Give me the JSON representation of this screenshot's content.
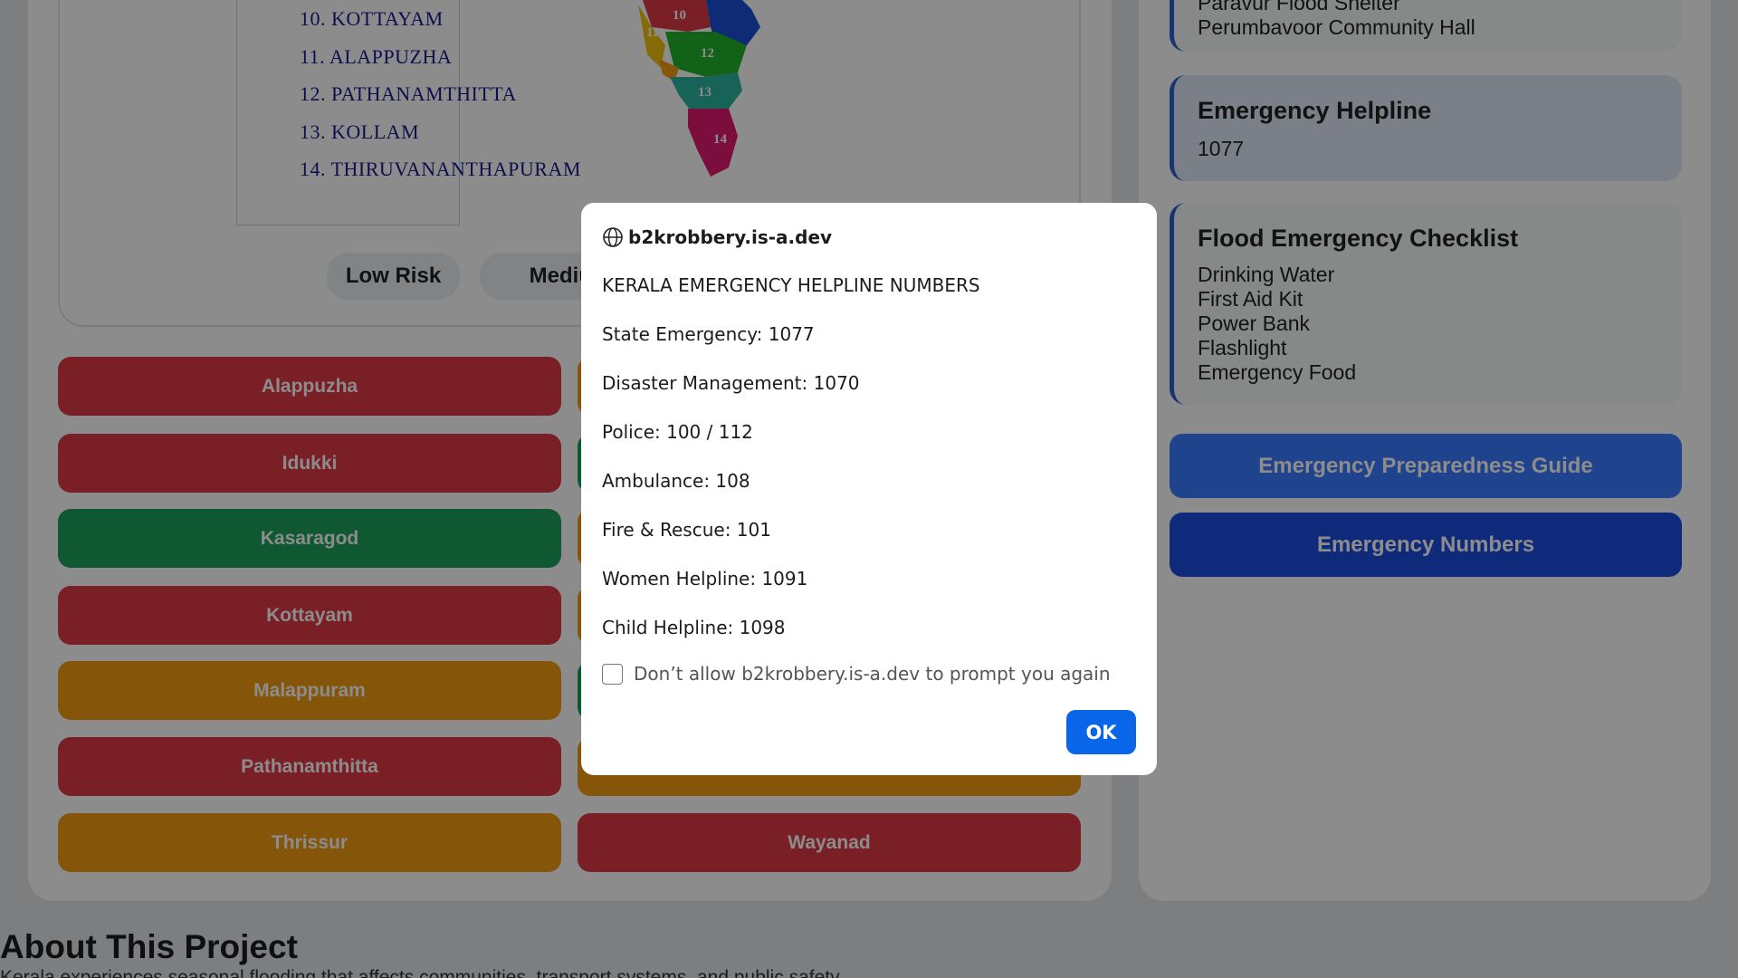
{
  "map": {
    "list": [
      "10. KOTTAYAM",
      "11. ALAPPUZHA",
      "12. PATHANAMTHITTA",
      "13. KOLLAM",
      "14. THIRUVANANTHAPURAM"
    ],
    "region_labels": [
      "10",
      "11",
      "12",
      "13",
      "14"
    ]
  },
  "risk_legend": [
    "Low Risk",
    "Medium"
  ],
  "districts": [
    {
      "name": "Alappuzha",
      "risk": "high",
      "column": 0,
      "row": 0
    },
    {
      "name": "Idukki",
      "risk": "high",
      "column": 0,
      "row": 1
    },
    {
      "name": "Kasaragod",
      "risk": "low",
      "column": 0,
      "row": 2
    },
    {
      "name": "Kottayam",
      "risk": "high",
      "column": 0,
      "row": 3
    },
    {
      "name": "Malappuram",
      "risk": "medium",
      "column": 0,
      "row": 4
    },
    {
      "name": "Pathanamthitta",
      "risk": "high",
      "column": 0,
      "row": 5
    },
    {
      "name": "Thrissur",
      "risk": "medium",
      "column": 0,
      "row": 6
    },
    {
      "name": "Wayanad",
      "risk": "high",
      "column": 1,
      "row": 6
    }
  ],
  "sidebar": {
    "shelters": [
      "Paravur Flood Shelter",
      "Perumbavoor Community Hall"
    ],
    "helpline": {
      "title": "Emergency Helpline",
      "number": "1077"
    },
    "checklist": {
      "title": "Flood Emergency Checklist",
      "items": [
        "Drinking Water",
        "First Aid Kit",
        "Power Bank",
        "Flashlight",
        "Emergency Food"
      ]
    },
    "buttons": [
      "Emergency Preparedness Guide",
      "Emergency Numbers"
    ]
  },
  "dialog": {
    "host": "b2krobbery.is-a.dev",
    "lines": [
      "KERALA EMERGENCY HELPLINE NUMBERS",
      "State Emergency: 1077",
      "Disaster Management: 1070",
      "Police: 100 / 112",
      "Ambulance: 108",
      "Fire & Rescue: 101",
      "Women Helpline: 1091",
      "Child Helpline: 1098"
    ],
    "checkbox_label": "Don’t allow b2krobbery.is-a.dev to prompt you again",
    "ok": "OK"
  },
  "about": {
    "title": "About This Project",
    "text": "Kerala experiences seasonal flooding that affects communities, transport systems, and public safety."
  }
}
